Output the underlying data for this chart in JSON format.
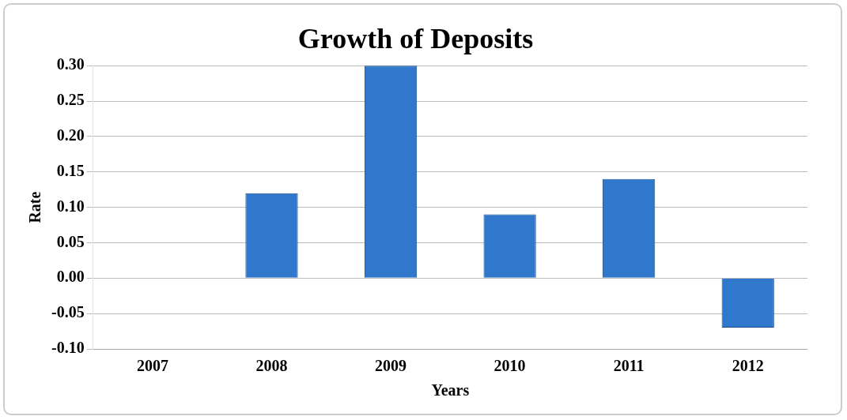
{
  "chart_data": {
    "type": "bar",
    "title": "Growth of Deposits",
    "xlabel": "Years",
    "ylabel": "Rate",
    "categories": [
      "2007",
      "2008",
      "2009",
      "2010",
      "2011",
      "2012"
    ],
    "values": [
      0.0,
      0.12,
      0.3,
      0.09,
      0.14,
      -0.07
    ],
    "color": "#2f78cc",
    "ylim": [
      -0.1,
      0.3
    ],
    "yticks": [
      {
        "value": -0.1,
        "label": "-0.10"
      },
      {
        "value": -0.05,
        "label": "-0.05"
      },
      {
        "value": 0,
        "label": "0.00"
      },
      {
        "value": 0.05,
        "label": "0.05"
      },
      {
        "value": 0.1,
        "label": "0.10"
      },
      {
        "value": 0.15,
        "label": "0.15"
      },
      {
        "value": 0.2,
        "label": "0.20"
      },
      {
        "value": 0.25,
        "label": "0.25"
      },
      {
        "value": 0.3,
        "label": "0.30"
      }
    ],
    "grid": "y"
  }
}
